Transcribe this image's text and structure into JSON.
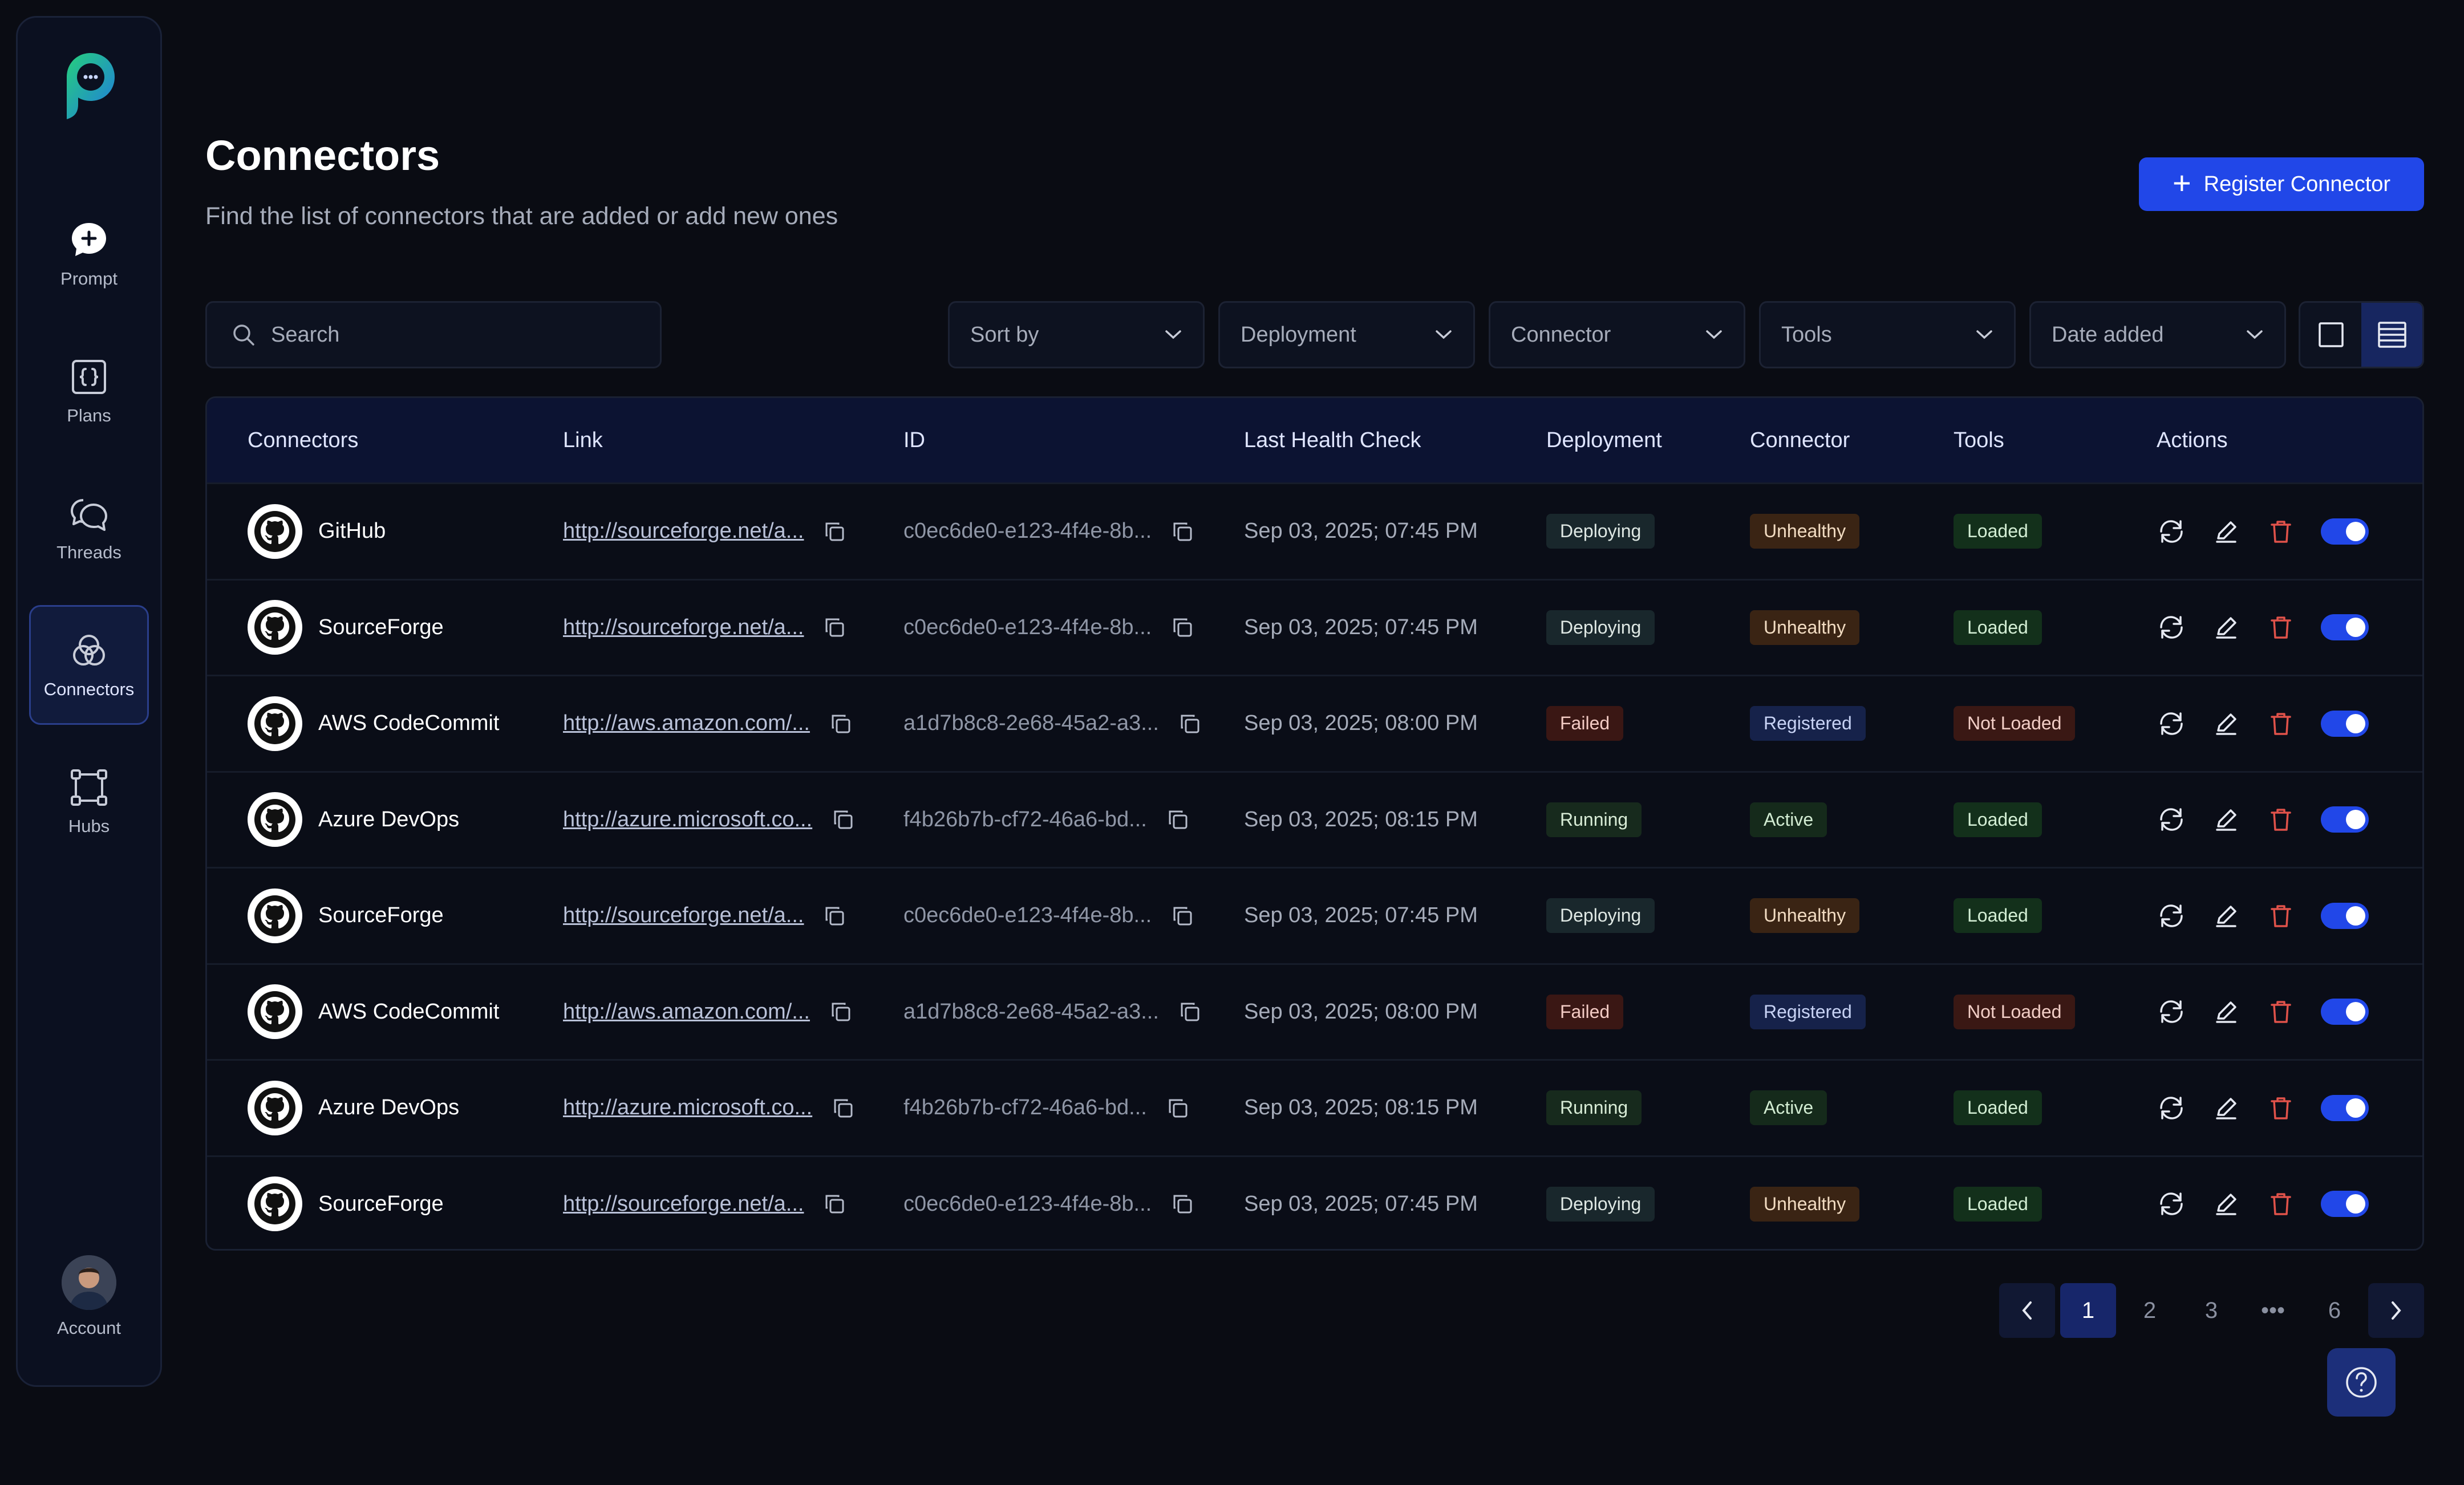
{
  "sidebar": {
    "items": [
      {
        "label": "Prompt",
        "icon": "prompt-plus-icon"
      },
      {
        "label": "Plans",
        "icon": "plans-braces-icon"
      },
      {
        "label": "Threads",
        "icon": "threads-chat-icon"
      },
      {
        "label": "Connectors",
        "icon": "connectors-circles-icon",
        "active": true
      },
      {
        "label": "Hubs",
        "icon": "hubs-nodes-icon"
      }
    ],
    "account_label": "Account"
  },
  "header": {
    "title": "Connectors",
    "subtitle": "Find the list of connectors that are added or add new ones",
    "register_label": "Register Connector"
  },
  "filters": {
    "search_placeholder": "Search",
    "sort_by": "Sort by",
    "deployment": "Deployment",
    "connector": "Connector",
    "tools": "Tools",
    "date_added": "Date added"
  },
  "table": {
    "headers": {
      "connectors": "Connectors",
      "link": "Link",
      "id": "ID",
      "last_health_check": "Last Health Check",
      "deployment": "Deployment",
      "connector": "Connector",
      "tools": "Tools",
      "actions": "Actions"
    },
    "rows": [
      {
        "name": "GitHub",
        "link": "http://sourceforge.net/a...",
        "id": "c0ec6de0-e123-4f4e-8b...",
        "date": "Sep 03, 2025; 07:45 PM",
        "deployment": "Deploying",
        "connector": "Unhealthy",
        "tools": "Loaded",
        "enabled": true
      },
      {
        "name": "SourceForge",
        "link": "http://sourceforge.net/a...",
        "id": "c0ec6de0-e123-4f4e-8b...",
        "date": "Sep 03, 2025; 07:45 PM",
        "deployment": "Deploying",
        "connector": "Unhealthy",
        "tools": "Loaded",
        "enabled": true
      },
      {
        "name": "AWS CodeCommit",
        "link": "http://aws.amazon.com/...",
        "id": "a1d7b8c8-2e68-45a2-a3...",
        "date": "Sep 03, 2025; 08:00 PM",
        "deployment": "Failed",
        "connector": "Registered",
        "tools": "Not Loaded",
        "enabled": true
      },
      {
        "name": "Azure DevOps",
        "link": "http://azure.microsoft.co...",
        "id": "f4b26b7b-cf72-46a6-bd...",
        "date": "Sep 03, 2025; 08:15 PM",
        "deployment": "Running",
        "connector": "Active",
        "tools": "Loaded",
        "enabled": true
      },
      {
        "name": "SourceForge",
        "link": "http://sourceforge.net/a...",
        "id": "c0ec6de0-e123-4f4e-8b...",
        "date": "Sep 03, 2025; 07:45 PM",
        "deployment": "Deploying",
        "connector": "Unhealthy",
        "tools": "Loaded",
        "enabled": true
      },
      {
        "name": "AWS CodeCommit",
        "link": "http://aws.amazon.com/...",
        "id": "a1d7b8c8-2e68-45a2-a3...",
        "date": "Sep 03, 2025; 08:00 PM",
        "deployment": "Failed",
        "connector": "Registered",
        "tools": "Not Loaded",
        "enabled": true
      },
      {
        "name": "Azure DevOps",
        "link": "http://azure.microsoft.co...",
        "id": "f4b26b7b-cf72-46a6-bd...",
        "date": "Sep 03, 2025; 08:15 PM",
        "deployment": "Running",
        "connector": "Active",
        "tools": "Loaded",
        "enabled": true
      },
      {
        "name": "SourceForge",
        "link": "http://sourceforge.net/a...",
        "id": "c0ec6de0-e123-4f4e-8b...",
        "date": "Sep 03, 2025; 07:45 PM",
        "deployment": "Deploying",
        "connector": "Unhealthy",
        "tools": "Loaded",
        "enabled": true
      }
    ]
  },
  "pagination": {
    "pages": [
      "1",
      "2",
      "3",
      "•••",
      "6"
    ],
    "current": "1"
  },
  "colors": {
    "accent": "#2147e8",
    "background": "#0a0c13",
    "delete_icon": "#e0524a"
  }
}
